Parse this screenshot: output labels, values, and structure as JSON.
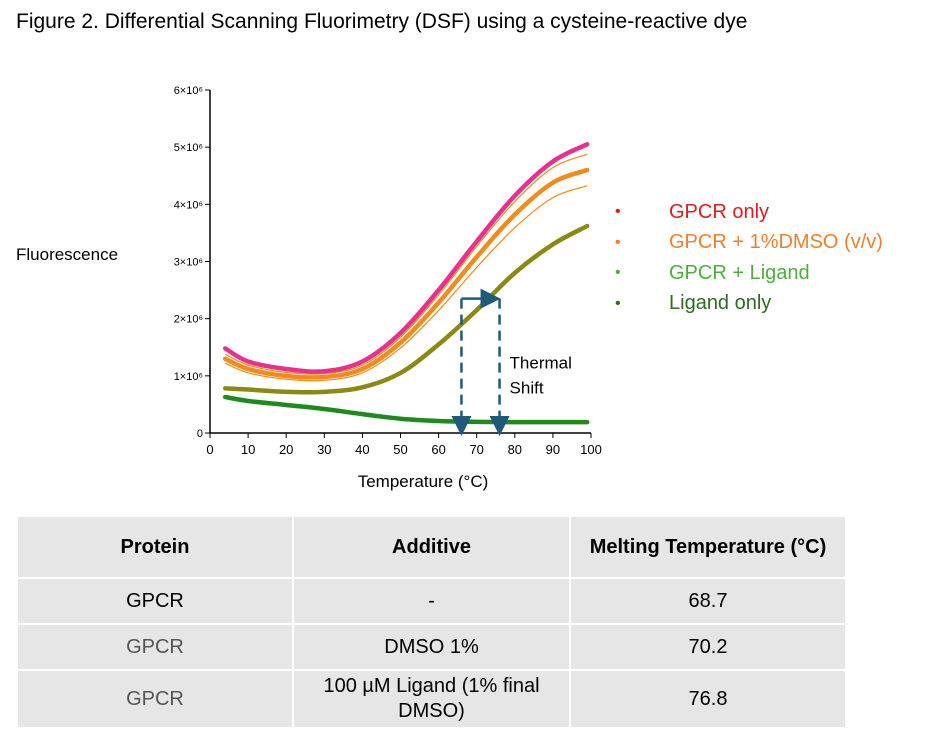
{
  "figure_title": "Figure 2. Differential Scanning Fluorimetry (DSF) using a cysteine-reactive dye",
  "chart_data": {
    "type": "line",
    "ylabel": "Fluorescence",
    "xlabel": "Temperature (°C)",
    "xlim": [
      0,
      100
    ],
    "ylim": [
      0,
      6000000
    ],
    "x_ticks": [
      "0",
      "10",
      "20",
      "30",
      "40",
      "50",
      "60",
      "70",
      "80",
      "90",
      "100"
    ],
    "y_ticks": [
      "0",
      "1×10⁶",
      "2×10⁶",
      "3×10⁶",
      "4×10⁶",
      "5×10⁶",
      "6×10⁶"
    ],
    "series": [
      {
        "name": "GPCR only",
        "color": "#e8308c",
        "legend_color": "#e41a1c",
        "x": [
          4,
          10,
          20,
          30,
          40,
          50,
          60,
          70,
          80,
          90,
          99
        ],
        "y": [
          1480000,
          1250000,
          1120000,
          1080000,
          1250000,
          1750000,
          2500000,
          3350000,
          4150000,
          4750000,
          5050000
        ]
      },
      {
        "name": "GPCR + 1%DMSO (v/v)",
        "color": "#f28a1c",
        "legend_color": "#f07f2a",
        "x": [
          4,
          10,
          20,
          30,
          40,
          50,
          60,
          70,
          80,
          90,
          99
        ],
        "y": [
          1300000,
          1120000,
          1000000,
          980000,
          1120000,
          1580000,
          2280000,
          3080000,
          3820000,
          4380000,
          4600000
        ]
      },
      {
        "name": "GPCR + Ligand",
        "color": "#8a8a10",
        "legend_color": "#4daf3a",
        "x": [
          4,
          10,
          20,
          30,
          40,
          50,
          60,
          70,
          80,
          90,
          99
        ],
        "y": [
          780000,
          760000,
          720000,
          720000,
          800000,
          1050000,
          1550000,
          2150000,
          2800000,
          3300000,
          3620000
        ]
      },
      {
        "name": "Ligand only",
        "color": "#1e8a1e",
        "legend_color": "#2e6b1e",
        "x": [
          4,
          10,
          20,
          30,
          40,
          50,
          60,
          70,
          80,
          90,
          99
        ],
        "y": [
          630000,
          560000,
          490000,
          420000,
          330000,
          250000,
          210000,
          195000,
          190000,
          190000,
          190000
        ]
      }
    ],
    "annotation": {
      "text_line1": "Thermal",
      "text_line2": "Shift",
      "from_x": 66,
      "to_x": 76,
      "at_y": 2350000
    },
    "legend_position": "right"
  },
  "table": {
    "headers": [
      "Protein",
      "Additive",
      "Melting Temperature (°C)"
    ],
    "rows": [
      [
        "GPCR",
        "-",
        "68.7"
      ],
      [
        "GPCR",
        "DMSO 1%",
        "70.2"
      ],
      [
        "GPCR",
        "100 µM Ligand (1% final DMSO)",
        "76.8"
      ]
    ]
  }
}
